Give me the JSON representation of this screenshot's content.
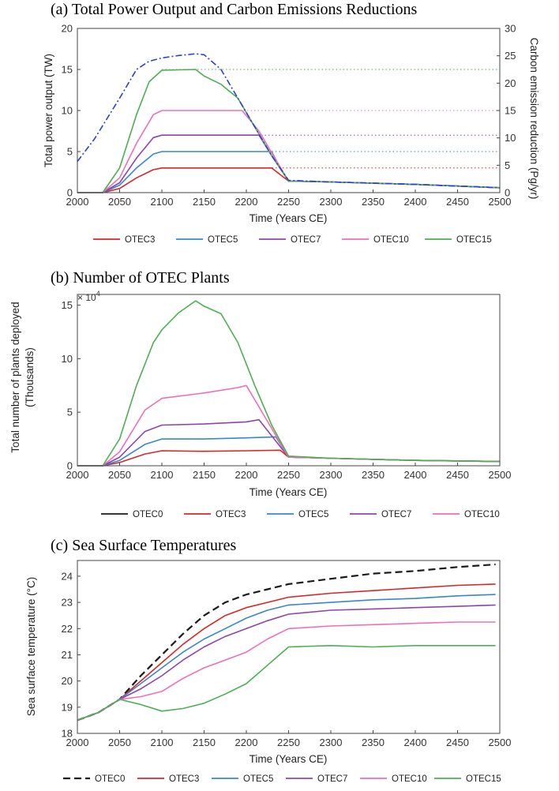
{
  "colors": {
    "OTEC0": "#1a1a1a",
    "OTEC3": "#d62728",
    "OTEC5": "#3a86c8",
    "OTEC7": "#8e44ad",
    "OTEC10": "#f06eb8",
    "OTEC15": "#4caf50",
    "demand": "#2a3fd6"
  },
  "chart_data": [
    {
      "id": "a",
      "type": "line",
      "title": "(a) Total Power Output and Carbon Emissions Reductions",
      "xlabel": "Time (Years CE)",
      "ylabel": "Total power output (TW)",
      "ylabel_right": "Carbon emission reduction (Pg/yr)",
      "xlim": [
        2000,
        2500
      ],
      "ylim": [
        0,
        20
      ],
      "ylim_right": [
        0,
        30
      ],
      "xticks": [
        2000,
        2050,
        2100,
        2150,
        2200,
        2250,
        2300,
        2350,
        2400,
        2450,
        2500
      ],
      "yticks": [
        0,
        5,
        10,
        15,
        20
      ],
      "yticks_right": [
        0,
        5,
        10,
        15,
        20,
        25,
        30
      ],
      "series": [
        {
          "name": "OTEC3",
          "color_key": "OTEC3",
          "x": [
            2000,
            2030,
            2050,
            2070,
            2090,
            2100,
            2150,
            2200,
            2230,
            2240,
            2250,
            2300,
            2400,
            2500
          ],
          "y": [
            0,
            0,
            0.5,
            1.8,
            2.8,
            3.0,
            3.0,
            3.0,
            3.0,
            2.2,
            1.4,
            1.3,
            1.0,
            0.6
          ]
        },
        {
          "name": "OTEC5",
          "color_key": "OTEC5",
          "x": [
            2000,
            2030,
            2050,
            2070,
            2090,
            2100,
            2150,
            2200,
            2230,
            2240,
            2250,
            2300,
            2400,
            2500
          ],
          "y": [
            0,
            0,
            0.9,
            3.0,
            4.7,
            5.0,
            5.0,
            5.0,
            5.0,
            3.0,
            1.4,
            1.3,
            1.0,
            0.6
          ]
        },
        {
          "name": "OTEC7",
          "color_key": "OTEC7",
          "x": [
            2000,
            2030,
            2050,
            2070,
            2090,
            2100,
            2150,
            2200,
            2215,
            2230,
            2250,
            2300,
            2400,
            2500
          ],
          "y": [
            0,
            0,
            1.2,
            4.2,
            6.7,
            7.0,
            7.0,
            7.0,
            7.0,
            4.5,
            1.4,
            1.3,
            1.0,
            0.6
          ]
        },
        {
          "name": "OTEC10",
          "color_key": "OTEC10",
          "x": [
            2000,
            2030,
            2050,
            2070,
            2090,
            2100,
            2150,
            2195,
            2215,
            2235,
            2250,
            2300,
            2400,
            2500
          ],
          "y": [
            0,
            0,
            1.8,
            6.0,
            9.5,
            10.0,
            10.0,
            10.0,
            7.5,
            4.0,
            1.4,
            1.3,
            1.0,
            0.6
          ]
        },
        {
          "name": "OTEC15",
          "color_key": "OTEC15",
          "x": [
            2000,
            2030,
            2050,
            2070,
            2085,
            2100,
            2140,
            2150,
            2170,
            2190,
            2210,
            2230,
            2250,
            2300,
            2400,
            2500
          ],
          "y": [
            0,
            0,
            3.0,
            9.5,
            13.5,
            14.9,
            15.0,
            14.2,
            13.2,
            11.5,
            8.0,
            4.5,
            1.4,
            1.3,
            1.0,
            0.6
          ]
        },
        {
          "name": "demand",
          "color_key": "demand",
          "dash": "dashdot",
          "x": [
            2000,
            2020,
            2050,
            2070,
            2085,
            2100,
            2120,
            2140,
            2150,
            2170,
            2190,
            2210,
            2230,
            2250,
            2300,
            2400,
            2500
          ],
          "y": [
            3.8,
            6.5,
            11.5,
            15.0,
            16.0,
            16.4,
            16.7,
            16.9,
            16.8,
            15.0,
            11.5,
            8.0,
            4.5,
            1.5,
            1.3,
            1.0,
            0.6
          ]
        }
      ],
      "reference_lines": [
        {
          "y": 3,
          "color_key": "OTEC3"
        },
        {
          "y": 5,
          "color_key": "OTEC5"
        },
        {
          "y": 7,
          "color_key": "OTEC7"
        },
        {
          "y": 10,
          "color_key": "OTEC10"
        },
        {
          "y": 15,
          "color_key": "OTEC15"
        }
      ],
      "legend": [
        "OTEC3",
        "OTEC5",
        "OTEC7",
        "OTEC10",
        "OTEC15"
      ]
    },
    {
      "id": "b",
      "type": "line",
      "title": "(b) Number of OTEC Plants",
      "xlabel": "Time (Years CE)",
      "ylabel": "Total number of plants deployed",
      "ylabel2": "(Thousands)",
      "exponent_base": "× 10",
      "exponent_power": "4",
      "xlim": [
        2000,
        2500
      ],
      "ylim": [
        0,
        16
      ],
      "xticks": [
        2000,
        2050,
        2100,
        2150,
        2200,
        2250,
        2300,
        2350,
        2400,
        2450,
        2500
      ],
      "yticks": [
        0,
        5,
        10,
        15
      ],
      "series": [
        {
          "name": "OTEC3",
          "color_key": "OTEC3",
          "x": [
            2000,
            2030,
            2050,
            2080,
            2100,
            2150,
            2200,
            2240,
            2250,
            2300,
            2400,
            2500
          ],
          "y": [
            0,
            0,
            0.3,
            1.1,
            1.4,
            1.35,
            1.4,
            1.45,
            0.8,
            0.7,
            0.5,
            0.4
          ]
        },
        {
          "name": "OTEC5",
          "color_key": "OTEC5",
          "x": [
            2000,
            2030,
            2050,
            2080,
            2100,
            2150,
            2200,
            2235,
            2250,
            2300,
            2400,
            2500
          ],
          "y": [
            0,
            0,
            0.5,
            2.0,
            2.5,
            2.5,
            2.6,
            2.7,
            0.8,
            0.7,
            0.5,
            0.4
          ]
        },
        {
          "name": "OTEC7",
          "color_key": "OTEC7",
          "x": [
            2000,
            2030,
            2050,
            2080,
            2100,
            2150,
            2200,
            2215,
            2250,
            2300,
            2400,
            2500
          ],
          "y": [
            0,
            0,
            0.8,
            3.2,
            3.8,
            3.9,
            4.1,
            4.3,
            0.8,
            0.7,
            0.5,
            0.4
          ]
        },
        {
          "name": "OTEC10",
          "color_key": "OTEC10",
          "x": [
            2000,
            2030,
            2050,
            2080,
            2100,
            2150,
            2190,
            2200,
            2250,
            2300,
            2400,
            2500
          ],
          "y": [
            0,
            0,
            1.3,
            5.2,
            6.3,
            6.8,
            7.3,
            7.5,
            0.8,
            0.7,
            0.5,
            0.4
          ]
        },
        {
          "name": "OTEC15",
          "color_key": "OTEC15",
          "x": [
            2000,
            2030,
            2050,
            2070,
            2090,
            2100,
            2120,
            2140,
            2150,
            2170,
            2190,
            2210,
            2230,
            2250,
            2300,
            2400,
            2500
          ],
          "y": [
            0,
            0,
            2.5,
            7.5,
            11.5,
            12.7,
            14.3,
            15.4,
            14.9,
            14.2,
            11.5,
            7.5,
            3.8,
            0.9,
            0.7,
            0.5,
            0.4
          ]
        }
      ],
      "legend": [
        "OTEC0",
        "OTEC3",
        "OTEC5",
        "OTEC7",
        "OTEC10"
      ]
    },
    {
      "id": "c",
      "type": "line",
      "title": "(c) Sea Surface Temperatures",
      "xlabel": "Time (Years CE)",
      "ylabel": "Sea surface temperature (°C)",
      "xlim": [
        2000,
        2500
      ],
      "ylim": [
        18,
        24.6
      ],
      "xticks": [
        2000,
        2050,
        2100,
        2150,
        2200,
        2250,
        2300,
        2350,
        2400,
        2450,
        2500
      ],
      "yticks": [
        18,
        19,
        20,
        21,
        22,
        23,
        24
      ],
      "series": [
        {
          "name": "OTEC0",
          "color_key": "OTEC0",
          "dash": "dashed",
          "x": [
            2000,
            2025,
            2050,
            2075,
            2100,
            2125,
            2150,
            2175,
            2200,
            2225,
            2250,
            2300,
            2350,
            2400,
            2450,
            2495
          ],
          "y": [
            18.5,
            18.8,
            19.3,
            20.2,
            21.0,
            21.8,
            22.5,
            23.0,
            23.3,
            23.5,
            23.7,
            23.9,
            24.1,
            24.2,
            24.35,
            24.45
          ]
        },
        {
          "name": "OTEC3",
          "color_key": "OTEC3",
          "x": [
            2000,
            2025,
            2050,
            2075,
            2100,
            2125,
            2150,
            2175,
            2200,
            2225,
            2250,
            2300,
            2350,
            2400,
            2450,
            2495
          ],
          "y": [
            18.5,
            18.8,
            19.3,
            20.0,
            20.7,
            21.4,
            22.0,
            22.5,
            22.8,
            23.0,
            23.2,
            23.35,
            23.45,
            23.55,
            23.65,
            23.7
          ]
        },
        {
          "name": "OTEC5",
          "color_key": "OTEC5",
          "x": [
            2000,
            2025,
            2050,
            2075,
            2100,
            2125,
            2150,
            2175,
            2200,
            2225,
            2250,
            2300,
            2350,
            2400,
            2450,
            2495
          ],
          "y": [
            18.5,
            18.8,
            19.3,
            19.9,
            20.5,
            21.1,
            21.6,
            22.0,
            22.4,
            22.7,
            22.9,
            23.0,
            23.1,
            23.15,
            23.25,
            23.3
          ]
        },
        {
          "name": "OTEC7",
          "color_key": "OTEC7",
          "x": [
            2000,
            2025,
            2050,
            2075,
            2100,
            2125,
            2150,
            2175,
            2200,
            2225,
            2250,
            2300,
            2350,
            2400,
            2450,
            2495
          ],
          "y": [
            18.5,
            18.8,
            19.3,
            19.7,
            20.2,
            20.8,
            21.3,
            21.7,
            22.0,
            22.3,
            22.55,
            22.7,
            22.75,
            22.8,
            22.85,
            22.9
          ]
        },
        {
          "name": "OTEC10",
          "color_key": "OTEC10",
          "x": [
            2000,
            2025,
            2050,
            2075,
            2100,
            2125,
            2150,
            2175,
            2200,
            2225,
            2250,
            2300,
            2350,
            2400,
            2450,
            2495
          ],
          "y": [
            18.5,
            18.8,
            19.3,
            19.4,
            19.6,
            20.1,
            20.5,
            20.8,
            21.1,
            21.6,
            22.0,
            22.1,
            22.15,
            22.2,
            22.25,
            22.25
          ]
        },
        {
          "name": "OTEC15",
          "color_key": "OTEC15",
          "x": [
            2000,
            2025,
            2050,
            2075,
            2100,
            2125,
            2150,
            2175,
            2200,
            2225,
            2250,
            2300,
            2350,
            2400,
            2450,
            2495
          ],
          "y": [
            18.5,
            18.8,
            19.3,
            19.1,
            18.85,
            18.95,
            19.15,
            19.5,
            19.9,
            20.6,
            21.3,
            21.35,
            21.3,
            21.35,
            21.35,
            21.35
          ]
        }
      ],
      "legend": [
        "OTEC0",
        "OTEC3",
        "OTEC5",
        "OTEC7",
        "OTEC10",
        "OTEC15"
      ]
    }
  ]
}
